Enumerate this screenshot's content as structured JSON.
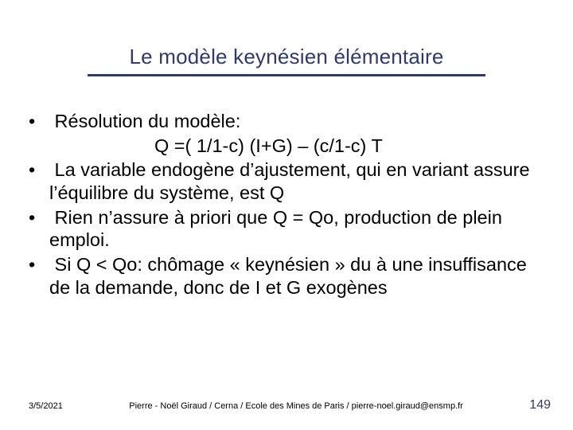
{
  "colors": {
    "title_text": "#2f3a6b",
    "title_rule": "#2f3a6b",
    "body_text": "#000000",
    "pagenum": "#2f3a6b",
    "background": "#ffffff"
  },
  "title": "Le modèle keynésien élémentaire",
  "body": {
    "items": [
      {
        "text": "Résolution du modèle:",
        "sub": "Q =( 1/1-c) (I+G) – (c/1-c) T"
      },
      {
        "text": "La variable endogène d’ajustement, qui en variant assure l’équilibre du système, est Q"
      },
      {
        "text": "Rien n’assure à priori que Q = Qo, production de plein emploi."
      },
      {
        "text": "Si Q < Qo: chômage « keynésien » du à une insuffisance de la demande, donc de I et G exogènes"
      }
    ]
  },
  "footer": {
    "date": "3/5/2021",
    "attribution": "Pierre - Noël Giraud / Cerna / Ecole des Mines de Paris /  pierre-noel.giraud@ensmp.fr",
    "page_number": "149"
  }
}
